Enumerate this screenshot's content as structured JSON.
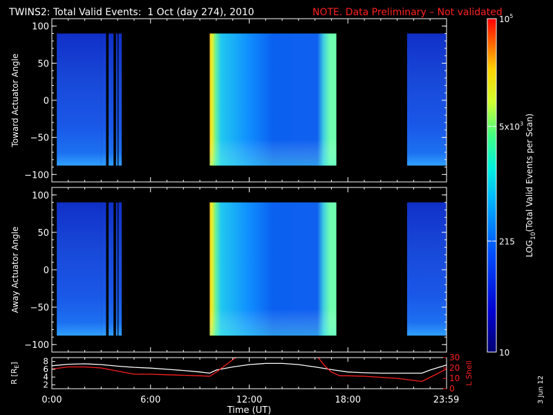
{
  "header": {
    "title": "TWINS2: Total Valid Events:  1 Oct (day 274), 2010",
    "note": "NOTE. Data Preliminary – Not validated",
    "note_color": "#ff2020"
  },
  "footer": {
    "date_stamp": "3 Jun 12"
  },
  "chart_data": [
    {
      "type": "heatmap",
      "panel": "top",
      "ylabel": "Toward Actuator Angle",
      "x_range_hours": [
        0,
        24
      ],
      "ylim": [
        -110,
        110
      ],
      "yticks": [
        100,
        50,
        0,
        -50,
        -100
      ],
      "data_blocks_hours": [
        {
          "start": 0.3,
          "end": 3.0,
          "level": "low"
        },
        {
          "start": 3.0,
          "end": 3.3,
          "level": "low"
        },
        {
          "start": 3.45,
          "end": 3.75,
          "level": "low"
        },
        {
          "start": 3.9,
          "end": 4.0,
          "level": "low"
        },
        {
          "start": 4.05,
          "end": 4.25,
          "level": "low"
        },
        {
          "start": 9.6,
          "end": 17.3,
          "level": "high"
        },
        {
          "start": 21.6,
          "end": 23.99,
          "level": "low"
        }
      ],
      "angle_range_covered": [
        -88,
        90
      ]
    },
    {
      "type": "heatmap",
      "panel": "bottom",
      "ylabel": "Away Actuator Angle",
      "x_range_hours": [
        0,
        24
      ],
      "ylim": [
        -110,
        110
      ],
      "yticks": [
        100,
        50,
        0,
        -50,
        -100
      ],
      "data_blocks_hours": [
        {
          "start": 0.3,
          "end": 3.0,
          "level": "low"
        },
        {
          "start": 3.0,
          "end": 3.3,
          "level": "low"
        },
        {
          "start": 3.45,
          "end": 3.75,
          "level": "low"
        },
        {
          "start": 3.9,
          "end": 4.0,
          "level": "low"
        },
        {
          "start": 4.05,
          "end": 4.25,
          "level": "low"
        },
        {
          "start": 9.6,
          "end": 17.3,
          "level": "high"
        },
        {
          "start": 21.6,
          "end": 23.99,
          "level": "low"
        }
      ],
      "angle_range_covered": [
        -88,
        90
      ]
    },
    {
      "type": "line",
      "panel": "orbit",
      "xlabel": "Time (UT)",
      "xticks": [
        "0:00",
        "6:00",
        "12:00",
        "18:00",
        "23:59"
      ],
      "xtick_hours": [
        0,
        6,
        12,
        18,
        23.98
      ],
      "ylabel_left": "R [R",
      "ylabel_left_sub": "E",
      "ylabel_left_close": "]",
      "ylabel_right": "L Shell",
      "yticks_left": [
        "8",
        "6",
        "4",
        "2"
      ],
      "yticks_right": [
        "30",
        "20",
        "10",
        "0"
      ],
      "ylim_left": [
        1,
        9
      ],
      "ylim_right": [
        0,
        30
      ],
      "series": [
        {
          "axis": "left",
          "color": "#ffffff",
          "x": [
            0,
            1,
            2,
            3,
            4,
            5,
            6,
            7,
            8,
            9,
            9.6,
            10,
            11,
            12,
            13,
            14,
            15,
            16,
            17,
            18,
            19,
            20,
            21,
            22,
            22.5,
            23,
            23.99
          ],
          "y": [
            6.9,
            7.3,
            7.4,
            7.2,
            6.8,
            6.5,
            6.3,
            6.0,
            5.7,
            5.3,
            5.0,
            5.8,
            6.6,
            7.2,
            7.5,
            7.5,
            7.2,
            6.6,
            5.9,
            5.3,
            5.1,
            5.0,
            5.0,
            5.0,
            5.0,
            5.8,
            7.1
          ]
        },
        {
          "axis": "right",
          "color": "#ff2020",
          "x": [
            0,
            1,
            2,
            3,
            4,
            5,
            6,
            7,
            8,
            9,
            9.6,
            10,
            10.5,
            11,
            11.2
          ],
          "y": [
            19,
            21,
            21,
            20,
            17,
            14,
            14,
            13.5,
            13,
            12.5,
            12,
            16,
            22,
            28,
            30
          ]
        },
        {
          "axis": "right",
          "color": "#ff2020",
          "x": [
            16.2,
            16.6,
            17.0,
            17.5,
            18,
            19,
            20,
            21,
            22,
            22.5,
            23,
            23.99
          ],
          "y": [
            30,
            22,
            16,
            12.5,
            12.5,
            12,
            11,
            10,
            8,
            7,
            11,
            19
          ]
        }
      ]
    },
    {
      "type": "colorbar",
      "label_prefix": "LOG",
      "label_sub": "10",
      "label_suffix": "(Total Valid Events per Scan)",
      "scale": "log",
      "range": [
        10,
        100000
      ],
      "tick_labels": [
        {
          "text": "10",
          "frac": 0.0
        },
        {
          "text": "215",
          "frac": 0.333
        },
        {
          "text": "5x10",
          "sup": "3",
          "frac": 0.677
        },
        {
          "text": "10",
          "sup": "5",
          "frac": 1.0
        }
      ]
    }
  ]
}
